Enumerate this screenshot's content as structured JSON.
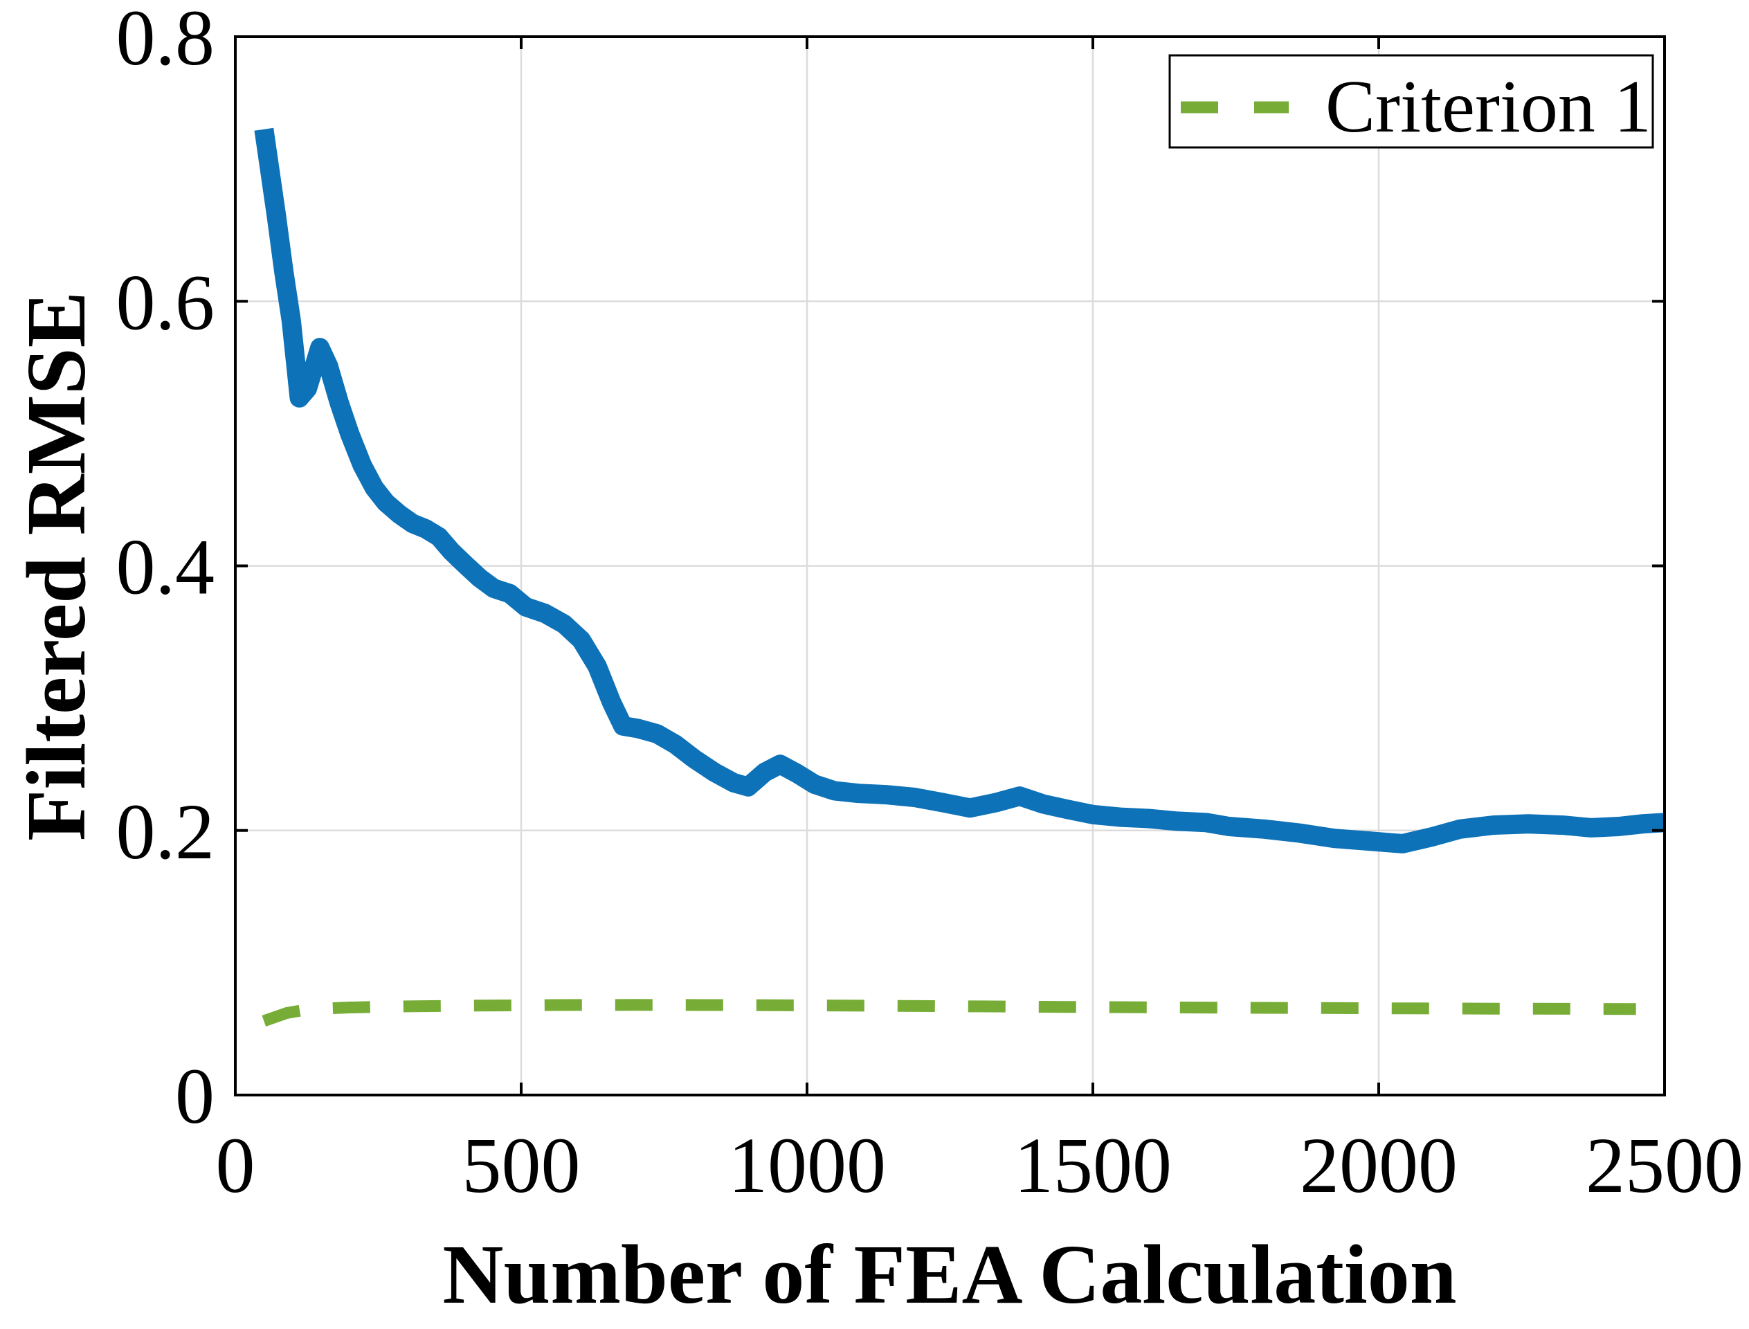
{
  "chart_data": {
    "type": "line",
    "title": "",
    "xlabel": "Number of FEA Calculation",
    "ylabel": "Filtered RMSE",
    "xlim": [
      0,
      2500
    ],
    "ylim": [
      0,
      0.8
    ],
    "xticks": [
      0,
      500,
      1000,
      1500,
      2000,
      2500
    ],
    "yticks": [
      0,
      0.2,
      0.4,
      0.6,
      0.8
    ],
    "grid": true,
    "grid_x": [
      500,
      1000,
      1500,
      2000
    ],
    "grid_y": [
      0.2,
      0.4,
      0.6
    ],
    "legend_position": "top-right",
    "series": [
      {
        "name": "Filtered RMSE",
        "color": "#0d72b8",
        "line_style": "solid",
        "line_width": 28,
        "in_legend": false,
        "points": [
          [
            50,
            0.73
          ],
          [
            60,
            0.7
          ],
          [
            72,
            0.664
          ],
          [
            85,
            0.622
          ],
          [
            98,
            0.585
          ],
          [
            112,
            0.527
          ],
          [
            126,
            0.534
          ],
          [
            148,
            0.565
          ],
          [
            163,
            0.551
          ],
          [
            182,
            0.523
          ],
          [
            200,
            0.5
          ],
          [
            222,
            0.476
          ],
          [
            243,
            0.459
          ],
          [
            263,
            0.448
          ],
          [
            287,
            0.439
          ],
          [
            310,
            0.432
          ],
          [
            333,
            0.428
          ],
          [
            356,
            0.422
          ],
          [
            378,
            0.411
          ],
          [
            402,
            0.401
          ],
          [
            427,
            0.391
          ],
          [
            452,
            0.383
          ],
          [
            480,
            0.379
          ],
          [
            508,
            0.369
          ],
          [
            542,
            0.364
          ],
          [
            575,
            0.356
          ],
          [
            605,
            0.344
          ],
          [
            633,
            0.324
          ],
          [
            658,
            0.297
          ],
          [
            678,
            0.279
          ],
          [
            705,
            0.277
          ],
          [
            738,
            0.273
          ],
          [
            770,
            0.265
          ],
          [
            803,
            0.254
          ],
          [
            838,
            0.244
          ],
          [
            872,
            0.236
          ],
          [
            897,
            0.233
          ],
          [
            926,
            0.244
          ],
          [
            953,
            0.25
          ],
          [
            983,
            0.243
          ],
          [
            1013,
            0.235
          ],
          [
            1048,
            0.23
          ],
          [
            1090,
            0.228
          ],
          [
            1138,
            0.227
          ],
          [
            1188,
            0.225
          ],
          [
            1238,
            0.221
          ],
          [
            1285,
            0.217
          ],
          [
            1330,
            0.221
          ],
          [
            1372,
            0.226
          ],
          [
            1413,
            0.22
          ],
          [
            1455,
            0.216
          ],
          [
            1500,
            0.212
          ],
          [
            1548,
            0.21
          ],
          [
            1597,
            0.209
          ],
          [
            1648,
            0.207
          ],
          [
            1698,
            0.206
          ],
          [
            1738,
            0.203
          ],
          [
            1800,
            0.201
          ],
          [
            1862,
            0.198
          ],
          [
            1922,
            0.194
          ],
          [
            1982,
            0.192
          ],
          [
            2042,
            0.19
          ],
          [
            2092,
            0.195
          ],
          [
            2142,
            0.201
          ],
          [
            2200,
            0.204
          ],
          [
            2262,
            0.205
          ],
          [
            2322,
            0.204
          ],
          [
            2372,
            0.202
          ],
          [
            2420,
            0.203
          ],
          [
            2462,
            0.205
          ],
          [
            2500,
            0.206
          ]
        ]
      },
      {
        "name": "Criterion 1",
        "color": "#77ad37",
        "line_style": "dashed",
        "dash_pattern": [
          54,
          48
        ],
        "line_width": 17,
        "in_legend": true,
        "points": [
          [
            50,
            0.056
          ],
          [
            90,
            0.062
          ],
          [
            130,
            0.065
          ],
          [
            200,
            0.0662
          ],
          [
            300,
            0.067
          ],
          [
            420,
            0.0676
          ],
          [
            560,
            0.068
          ],
          [
            700,
            0.0681
          ],
          [
            850,
            0.068
          ],
          [
            1000,
            0.0678
          ],
          [
            1150,
            0.0674
          ],
          [
            1300,
            0.067
          ],
          [
            1450,
            0.0666
          ],
          [
            1600,
            0.0663
          ],
          [
            1750,
            0.066
          ],
          [
            1900,
            0.0658
          ],
          [
            2050,
            0.0655
          ],
          [
            2200,
            0.0653
          ],
          [
            2330,
            0.0652
          ],
          [
            2450,
            0.065
          ]
        ]
      }
    ]
  },
  "style": {
    "background": "#ffffff",
    "axis_color": "#000000",
    "grid_color": "#dcdcdc",
    "tick_label_color": "#1a1a1a",
    "legend_border_color": "#000000",
    "legend_fill": "#ffffff",
    "blue_line": "#0d72b8",
    "green_line": "#77ad37"
  }
}
